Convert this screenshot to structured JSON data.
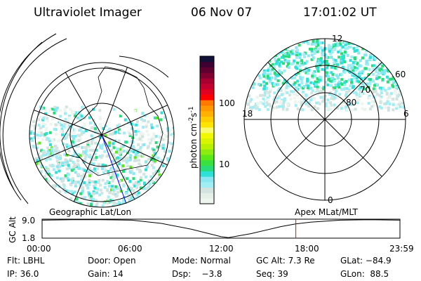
{
  "header": {
    "instrument": "Ultraviolet Imager",
    "date": "06 Nov 07",
    "time": "17:01:02 UT"
  },
  "colorbar": {
    "label": "photon cm",
    "unit_sup1": "-2",
    "unit_mid": "s",
    "unit_sup2": "-1",
    "ticks": [
      "100",
      "10"
    ],
    "scale": "log",
    "colors": [
      "#eef5ee",
      "#e4efe8",
      "#d2e3e0",
      "#a0eef4",
      "#8ae6f0",
      "#2ee0d8",
      "#28dc78",
      "#3ae040",
      "#5ae818",
      "#8cec10",
      "#b8f000",
      "#d8f400",
      "#f2f800",
      "#fafa70",
      "#ffe400",
      "#ffcc00",
      "#ffb000",
      "#ff9800",
      "#ff7800",
      "#ff0000",
      "#e00020",
      "#c40030",
      "#a80030",
      "#800030",
      "#600030",
      "#400030",
      "#101038"
    ]
  },
  "polar_plot": {
    "mlt_labels": [
      "12",
      "18",
      "6",
      "0"
    ],
    "lat_labels": [
      "60",
      "70",
      "80"
    ]
  },
  "timeline": {
    "left_label": "Geographic Lat/Lon",
    "right_label": "Apex MLat/MLT",
    "ylabel": "GC Alt",
    "ymax": "9.0",
    "ymin": "1.8",
    "xticks": [
      "00:00",
      "06:00",
      "12:00",
      "18:00",
      "23:59"
    ],
    "current_time": "17:01",
    "marker_color": "#ff0000",
    "series": {
      "hours": [
        0,
        2,
        4,
        6,
        8,
        10,
        12,
        12.5,
        14,
        16,
        17,
        18,
        20,
        22,
        24
      ],
      "alt_re": [
        8.8,
        9.0,
        9.0,
        8.8,
        7.5,
        5.2,
        2.2,
        1.8,
        3.4,
        6.2,
        7.3,
        8.0,
        8.8,
        9.0,
        8.8
      ]
    }
  },
  "status": {
    "flt": "Flt: LBHL",
    "door": "Door: Open",
    "mode": "Mode: Normal",
    "gc_alt": "GC Alt: 7.3 Re",
    "glat": "GLat: −84.9",
    "ip": "IP: 36.0",
    "gain": "Gain: 14",
    "dsp": "Dsp:    −3.8",
    "seq": "Seq: 39",
    "glon": "GLon:  88.5"
  }
}
